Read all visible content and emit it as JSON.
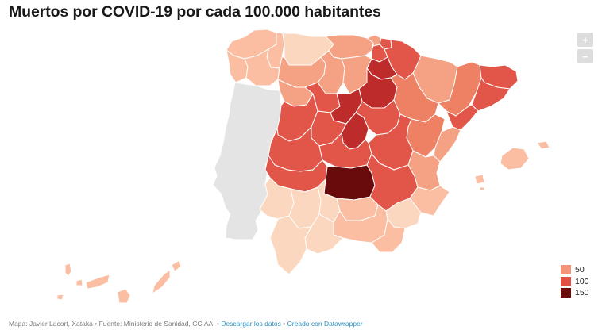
{
  "title": "Muertos por COVID-19 por cada 100.000 habitantes",
  "zoom": {
    "zoom_in_label": "+",
    "zoom_out_label": "−"
  },
  "legend": {
    "items": [
      {
        "label": "50",
        "color": "#f4957b"
      },
      {
        "label": "100",
        "color": "#e24f45"
      },
      {
        "label": "150",
        "color": "#6c0a0c"
      }
    ]
  },
  "map": {
    "colors": {
      "very_light": "#fcd7bf",
      "light": "#fbbea2",
      "medium_light": "#f5a284",
      "medium": "#ee8064",
      "medium_dark": "#e2564a",
      "dark": "#bd2c2a",
      "darkest": "#690a0d",
      "portugal": "#e4e4e4",
      "border": "#ffffff"
    }
  },
  "footer": {
    "credit": "Mapa: Javier Lacort, Xataka",
    "source": "Fuente: Ministerio de Sanidad, CC.AA.",
    "separator": "•",
    "download_label": "Descargar los datos",
    "created_label": "Creado con Datawrapper"
  }
}
